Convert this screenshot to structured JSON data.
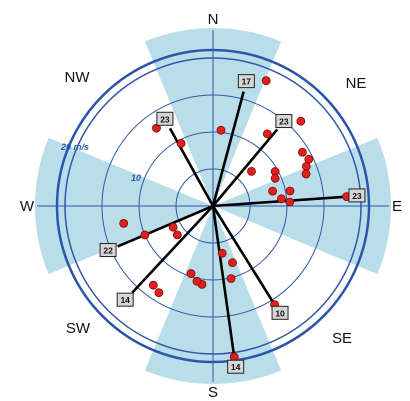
{
  "compass": {
    "north": "N",
    "northeast": "NE",
    "east": "E",
    "southeast": "SE",
    "south": "S",
    "southwest": "SW",
    "west": "W",
    "northwest": "NW"
  },
  "rings": {
    "inner_label": "10",
    "outer_label": "20 m/s"
  },
  "colors": {
    "sector_fill": "#add8e6",
    "ring_stroke": "#2f57a8",
    "outer_stroke": "#2b55ab",
    "point_fill": "#e0201b",
    "line": "#000000",
    "badge_fill": "#d6d6d6"
  },
  "chart_data": {
    "type": "scatter",
    "note_units": "polar: direction in degrees clockwise from N, speed in m/s",
    "r_max": 20,
    "points": [
      {
        "dir": 23,
        "speed": 18.4
      },
      {
        "dir": 37,
        "speed": 12.2
      },
      {
        "dir": 46,
        "speed": 16.5
      },
      {
        "dir": 59,
        "speed": 14.1
      },
      {
        "dir": 64,
        "speed": 14.4
      },
      {
        "dir": 67,
        "speed": 13.7
      },
      {
        "dir": 71,
        "speed": 13.3
      },
      {
        "dir": 61,
        "speed": 9.6
      },
      {
        "dir": 66,
        "speed": 9.2
      },
      {
        "dir": 76,
        "speed": 8.3
      },
      {
        "dir": 79,
        "speed": 10.6
      },
      {
        "dir": 84,
        "speed": 9.3
      },
      {
        "dir": 87,
        "speed": 10.4
      },
      {
        "dir": 86,
        "speed": 18.1
      },
      {
        "dir": 48,
        "speed": 7.0
      },
      {
        "dir": 6,
        "speed": 10.3
      },
      {
        "dir": 148,
        "speed": 15.7
      },
      {
        "dir": 172,
        "speed": 20.6
      },
      {
        "dir": 166,
        "speed": 10.1
      },
      {
        "dir": 161,
        "speed": 8.1
      },
      {
        "dir": 169,
        "speed": 6.5
      },
      {
        "dir": 188,
        "speed": 10.7
      },
      {
        "dir": 192,
        "speed": 10.4
      },
      {
        "dir": 198,
        "speed": 9.6
      },
      {
        "dir": 212,
        "speed": 13.8
      },
      {
        "dir": 217,
        "speed": 13.4
      },
      {
        "dir": 231,
        "speed": 6.2
      },
      {
        "dir": 242,
        "speed": 6.1
      },
      {
        "dir": 247,
        "speed": 10.0
      },
      {
        "dir": 259,
        "speed": 12.3
      },
      {
        "dir": 333,
        "speed": 9.5
      },
      {
        "dir": 324,
        "speed": 13.0
      }
    ],
    "vectors": [
      {
        "dir": 15,
        "speed": 16.0,
        "label": "17"
      },
      {
        "dir": 40,
        "speed": 13.5,
        "label": "23"
      },
      {
        "dir": 86,
        "speed": 18.1,
        "label": "23"
      },
      {
        "dir": 148,
        "speed": 15.7,
        "label": "10"
      },
      {
        "dir": 172,
        "speed": 20.6,
        "label": "14"
      },
      {
        "dir": 223,
        "speed": 16.0,
        "label": "14"
      },
      {
        "dir": 247,
        "speed": 14.0,
        "label": "22"
      },
      {
        "dir": 331,
        "speed": 12.0,
        "label": "23"
      }
    ]
  }
}
